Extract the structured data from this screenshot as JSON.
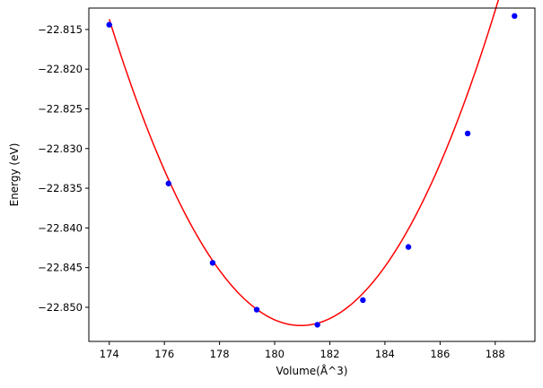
{
  "chart_data": {
    "type": "scatter",
    "title": "",
    "xlabel": "Volume(Å^3)",
    "ylabel": "Energy (eV)",
    "xlim": [
      173.26,
      189.44
    ],
    "ylim": [
      -22.8543,
      -22.8123
    ],
    "xticks": [
      174,
      176,
      178,
      180,
      182,
      184,
      186,
      188
    ],
    "yticks": [
      -22.85,
      -22.845,
      -22.84,
      -22.835,
      -22.83,
      -22.825,
      -22.82,
      -22.815
    ],
    "ytick_labels": [
      "−22.850",
      "−22.845",
      "−22.840",
      "−22.835",
      "−22.830",
      "−22.825",
      "−22.820",
      "−22.815"
    ],
    "grid": false,
    "series": [
      {
        "kind": "points",
        "color": "#0000ff",
        "x": [
          174.0,
          176.15,
          177.75,
          179.35,
          181.55,
          183.2,
          184.85,
          187.0,
          188.7
        ],
        "y": [
          -22.8144,
          -22.8344,
          -22.8444,
          -22.8503,
          -22.8522,
          -22.8491,
          -22.8424,
          -22.8281,
          -22.8133
        ]
      },
      {
        "kind": "fit-curve",
        "color": "#ff0000",
        "x_min": 174.0,
        "x_max": 188.7,
        "vertex_x": 180.95,
        "vertex_y": -22.8523,
        "curvature": 0.000799
      }
    ]
  }
}
